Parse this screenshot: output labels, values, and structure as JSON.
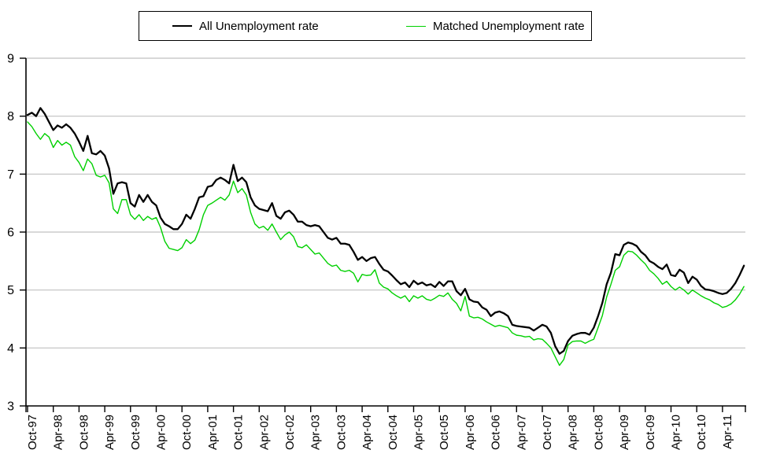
{
  "legend": {
    "series1_label": "All Unemployment rate",
    "series2_label": "Matched Unemployment rate"
  },
  "colors": {
    "background": "#FFFFFF",
    "gridline": "#C0C0C0",
    "axis": "#000000",
    "series1": "#000000",
    "series2": "#00D000"
  },
  "chart_data": {
    "type": "line",
    "x_frequency": "monthly",
    "x_start": "Oct-97",
    "x_end": "Sep-11",
    "months_between_ticks": 6,
    "x_tick_labels": [
      "Oct-97",
      "Apr-98",
      "Oct-98",
      "Apr-99",
      "Oct-99",
      "Apr-00",
      "Oct-00",
      "Apr-01",
      "Oct-01",
      "Apr-02",
      "Oct-02",
      "Apr-03",
      "Oct-03",
      "Apr-04",
      "Oct-04",
      "Apr-05",
      "Oct-05",
      "Apr-06",
      "Oct-06",
      "Apr-07",
      "Oct-07",
      "Apr-08",
      "Oct-08",
      "Apr-09",
      "Oct-09",
      "Apr-10",
      "Oct-10",
      "Apr-11"
    ],
    "y_ticks": [
      3,
      4,
      5,
      6,
      7,
      8,
      9
    ],
    "ylim": [
      3,
      9
    ],
    "grid": "horizontal",
    "legend_position": "top",
    "series": [
      {
        "name": "All Unemployment rate",
        "color": "#000000",
        "width": 2.3,
        "values": [
          8.02,
          8.06,
          8.0,
          8.14,
          8.04,
          7.9,
          7.76,
          7.84,
          7.8,
          7.86,
          7.8,
          7.7,
          7.56,
          7.4,
          7.66,
          7.36,
          7.34,
          7.4,
          7.32,
          7.1,
          6.66,
          6.84,
          6.86,
          6.84,
          6.5,
          6.44,
          6.64,
          6.52,
          6.64,
          6.52,
          6.46,
          6.25,
          6.14,
          6.1,
          6.05,
          6.05,
          6.14,
          6.3,
          6.23,
          6.4,
          6.6,
          6.62,
          6.78,
          6.8,
          6.9,
          6.94,
          6.9,
          6.84,
          7.16,
          6.88,
          6.94,
          6.86,
          6.6,
          6.46,
          6.4,
          6.38,
          6.36,
          6.5,
          6.28,
          6.23,
          6.34,
          6.37,
          6.3,
          6.18,
          6.18,
          6.12,
          6.1,
          6.12,
          6.1,
          6.0,
          5.9,
          5.87,
          5.9,
          5.8,
          5.8,
          5.78,
          5.66,
          5.52,
          5.57,
          5.5,
          5.55,
          5.57,
          5.45,
          5.35,
          5.32,
          5.25,
          5.17,
          5.1,
          5.13,
          5.05,
          5.16,
          5.1,
          5.13,
          5.08,
          5.1,
          5.05,
          5.14,
          5.07,
          5.15,
          5.15,
          4.98,
          4.91,
          5.02,
          4.84,
          4.8,
          4.79,
          4.7,
          4.66,
          4.55,
          4.61,
          4.63,
          4.6,
          4.55,
          4.4,
          4.38,
          4.37,
          4.36,
          4.35,
          4.3,
          4.35,
          4.4,
          4.37,
          4.26,
          4.03,
          3.9,
          3.95,
          4.12,
          4.21,
          4.24,
          4.26,
          4.26,
          4.23,
          4.35,
          4.55,
          4.78,
          5.1,
          5.3,
          5.62,
          5.6,
          5.78,
          5.82,
          5.8,
          5.76,
          5.66,
          5.6,
          5.5,
          5.46,
          5.4,
          5.36,
          5.44,
          5.26,
          5.24,
          5.35,
          5.3,
          5.12,
          5.23,
          5.18,
          5.07,
          5.01,
          5.0,
          4.98,
          4.95,
          4.93,
          4.95,
          5.02,
          5.12,
          5.26,
          5.42
        ]
      },
      {
        "name": "Matched Unemployment rate",
        "color": "#00D000",
        "width": 1.4,
        "values": [
          7.9,
          7.82,
          7.7,
          7.6,
          7.7,
          7.64,
          7.46,
          7.58,
          7.5,
          7.55,
          7.5,
          7.3,
          7.2,
          7.06,
          7.26,
          7.18,
          6.98,
          6.95,
          6.98,
          6.85,
          6.4,
          6.32,
          6.56,
          6.56,
          6.3,
          6.22,
          6.3,
          6.2,
          6.27,
          6.22,
          6.25,
          6.08,
          5.84,
          5.72,
          5.7,
          5.68,
          5.73,
          5.87,
          5.8,
          5.86,
          6.04,
          6.3,
          6.46,
          6.5,
          6.55,
          6.6,
          6.55,
          6.64,
          6.88,
          6.68,
          6.75,
          6.64,
          6.34,
          6.14,
          6.07,
          6.1,
          6.03,
          6.14,
          6.0,
          5.87,
          5.95,
          6.0,
          5.92,
          5.75,
          5.73,
          5.78,
          5.7,
          5.62,
          5.64,
          5.55,
          5.46,
          5.41,
          5.43,
          5.34,
          5.32,
          5.34,
          5.29,
          5.14,
          5.27,
          5.25,
          5.26,
          5.35,
          5.12,
          5.05,
          5.02,
          4.95,
          4.9,
          4.86,
          4.9,
          4.8,
          4.9,
          4.86,
          4.9,
          4.84,
          4.82,
          4.86,
          4.91,
          4.89,
          4.95,
          4.84,
          4.77,
          4.64,
          4.89,
          4.55,
          4.52,
          4.53,
          4.5,
          4.45,
          4.41,
          4.37,
          4.39,
          4.37,
          4.35,
          4.26,
          4.22,
          4.21,
          4.19,
          4.2,
          4.14,
          4.16,
          4.15,
          4.08,
          4.0,
          3.85,
          3.7,
          3.8,
          4.05,
          4.11,
          4.12,
          4.12,
          4.08,
          4.12,
          4.15,
          4.35,
          4.56,
          4.88,
          5.1,
          5.34,
          5.4,
          5.6,
          5.67,
          5.66,
          5.6,
          5.52,
          5.45,
          5.34,
          5.28,
          5.2,
          5.1,
          5.15,
          5.06,
          5.0,
          5.05,
          5.0,
          4.93,
          5.0,
          4.95,
          4.9,
          4.86,
          4.83,
          4.78,
          4.75,
          4.7,
          4.72,
          4.76,
          4.83,
          4.93,
          5.06
        ]
      }
    ]
  }
}
